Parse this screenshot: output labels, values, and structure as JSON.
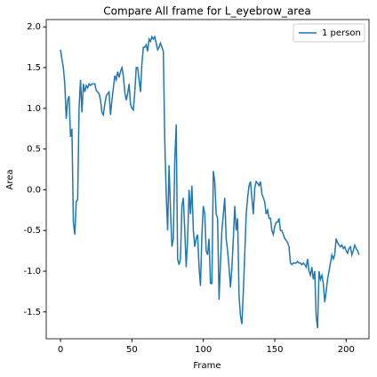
{
  "chart_data": {
    "type": "line",
    "title": "Compare All frame for L_eyebrow_area",
    "xlabel": "Frame",
    "ylabel": "Area",
    "x": [
      0,
      1,
      2,
      3,
      4,
      5,
      6,
      7,
      8,
      9,
      10,
      11,
      12,
      13,
      14,
      15,
      16,
      17,
      18,
      19,
      20,
      21,
      22,
      23,
      24,
      25,
      26,
      27,
      28,
      29,
      30,
      31,
      32,
      33,
      34,
      35,
      36,
      37,
      38,
      39,
      40,
      41,
      42,
      43,
      44,
      45,
      46,
      47,
      48,
      49,
      50,
      51,
      52,
      53,
      54,
      55,
      56,
      57,
      58,
      59,
      60,
      61,
      62,
      63,
      64,
      65,
      66,
      67,
      68,
      69,
      70,
      71,
      72,
      73,
      74,
      75,
      76,
      77,
      78,
      79,
      80,
      81,
      82,
      83,
      84,
      85,
      86,
      87,
      88,
      89,
      90,
      91,
      92,
      93,
      94,
      95,
      96,
      97,
      98,
      99,
      100,
      101,
      102,
      103,
      104,
      105,
      106,
      107,
      108,
      109,
      110,
      111,
      112,
      113,
      114,
      115,
      116,
      117,
      118,
      119,
      120,
      121,
      122,
      123,
      124,
      125,
      126,
      127,
      128,
      129,
      130,
      131,
      132,
      133,
      134,
      135,
      136,
      137,
      138,
      139,
      140,
      141,
      142,
      143,
      144,
      145,
      146,
      147,
      148,
      149,
      150,
      151,
      152,
      153,
      154,
      155,
      156,
      157,
      158,
      159,
      160,
      161,
      162,
      163,
      164,
      165,
      166,
      167,
      168,
      169,
      170,
      171,
      172,
      173,
      174,
      175,
      176,
      177,
      178,
      179,
      180,
      181,
      182,
      183,
      184,
      185,
      186,
      187,
      188,
      189,
      190,
      191,
      192,
      193,
      194,
      195,
      196,
      197,
      198,
      199,
      200,
      201,
      202,
      203,
      204,
      205,
      206,
      207,
      208,
      209
    ],
    "series": [
      {
        "name": "1 person",
        "color": "#1f77b4",
        "values": [
          1.72,
          1.6,
          1.5,
          1.3,
          0.87,
          1.1,
          1.15,
          0.65,
          0.75,
          -0.4,
          -0.55,
          -0.15,
          -0.12,
          1.0,
          1.35,
          0.95,
          1.3,
          1.2,
          1.28,
          1.25,
          1.3,
          1.28,
          1.3,
          1.3,
          1.3,
          1.22,
          1.2,
          1.18,
          1.1,
          0.95,
          0.92,
          1.05,
          1.15,
          1.18,
          1.2,
          0.92,
          1.1,
          1.25,
          1.4,
          1.35,
          1.45,
          1.38,
          1.45,
          1.5,
          1.4,
          1.2,
          1.1,
          1.18,
          1.3,
          1.05,
          1.0,
          0.98,
          1.2,
          1.5,
          1.5,
          1.35,
          1.2,
          1.55,
          1.75,
          1.75,
          1.78,
          1.7,
          1.85,
          1.82,
          1.88,
          1.85,
          1.88,
          1.8,
          1.72,
          1.75,
          1.8,
          1.75,
          1.7,
          0.6,
          -0.05,
          -0.5,
          0.3,
          -0.25,
          -0.7,
          -0.6,
          0.35,
          0.8,
          -0.85,
          -0.92,
          -0.85,
          -0.2,
          -0.1,
          -0.5,
          -0.95,
          -0.6,
          0.0,
          -0.3,
          0.05,
          -0.5,
          -0.7,
          -0.6,
          -0.55,
          -0.95,
          -1.18,
          -0.55,
          -0.2,
          -0.3,
          -0.75,
          -0.8,
          -0.6,
          -1.15,
          -1.15,
          0.23,
          0.1,
          -0.3,
          -0.35,
          -1.35,
          -0.9,
          -0.5,
          -0.3,
          -0.1,
          -0.6,
          -0.75,
          -0.95,
          -1.2,
          -0.95,
          -0.6,
          -0.2,
          -0.5,
          -0.35,
          -1.3,
          -1.55,
          -1.65,
          -1.25,
          -0.8,
          -0.3,
          -0.1,
          0.05,
          0.1,
          -0.1,
          -0.3,
          0.02,
          0.1,
          0.08,
          0.05,
          0.1,
          -0.05,
          -0.1,
          -0.15,
          -0.3,
          -0.25,
          -0.35,
          -0.35,
          -0.5,
          -0.55,
          -0.45,
          -0.4,
          -0.4,
          -0.35,
          -0.5,
          -0.5,
          -0.55,
          -0.6,
          -0.62,
          -0.65,
          -0.7,
          -0.9,
          -0.92,
          -0.9,
          -0.9,
          -0.9,
          -0.88,
          -0.9,
          -0.9,
          -0.92,
          -0.9,
          -0.92,
          -0.95,
          -0.85,
          -1.0,
          -1.05,
          -0.95,
          -1.1,
          -1.0,
          -1.55,
          -1.7,
          -1.0,
          -1.1,
          -1.05,
          -1.15,
          -1.38,
          -1.25,
          -1.1,
          -1.0,
          -0.9,
          -0.8,
          -0.85,
          -0.8,
          -0.6,
          -0.65,
          -0.68,
          -0.7,
          -0.68,
          -0.72,
          -0.7,
          -0.75,
          -0.78,
          -0.72,
          -0.7,
          -0.8,
          -0.75,
          -0.68,
          -0.72,
          -0.75,
          -0.8
        ]
      }
    ],
    "xlim": [
      -10,
      216
    ],
    "xticks": [
      0,
      50,
      100,
      150,
      200
    ],
    "ylim": [
      -1.83,
      2.09
    ],
    "yticks": [
      -1.5,
      {
        "value": -1.0,
        "label": "-1.0"
      },
      -0.5,
      {
        "value": 0.0,
        "label": "0.0"
      },
      0.5,
      {
        "value": 1.0,
        "label": "1.0"
      },
      1.5,
      {
        "value": 2.0,
        "label": "2.0"
      }
    ],
    "legend": "upper right"
  }
}
